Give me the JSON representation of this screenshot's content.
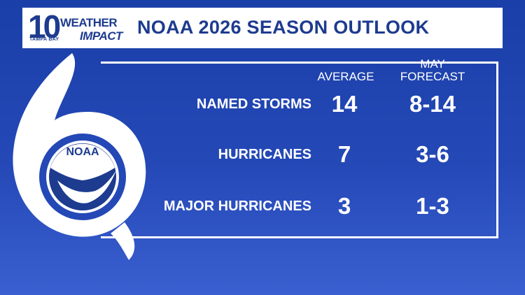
{
  "logo": {
    "number": "10",
    "station": "TAMPA BAY",
    "line1": "WEATHER",
    "line2": "IMPACT"
  },
  "title": "NOAA 2026 SEASON OUTLOOK",
  "noaa_label": "NOAA",
  "columns": {
    "average": "AVERAGE",
    "forecast_line1": "MAY",
    "forecast_line2": "FORECAST"
  },
  "rows": [
    {
      "label": "NAMED STORMS",
      "average": "14",
      "forecast": "8-14"
    },
    {
      "label": "HURRICANES",
      "average": "7",
      "forecast": "3-6"
    },
    {
      "label": "MAJOR HURRICANES",
      "average": "3",
      "forecast": "1-3"
    }
  ],
  "colors": {
    "brand_blue": "#1d3b8f",
    "background": "#2448b6",
    "text": "#ffffff"
  }
}
